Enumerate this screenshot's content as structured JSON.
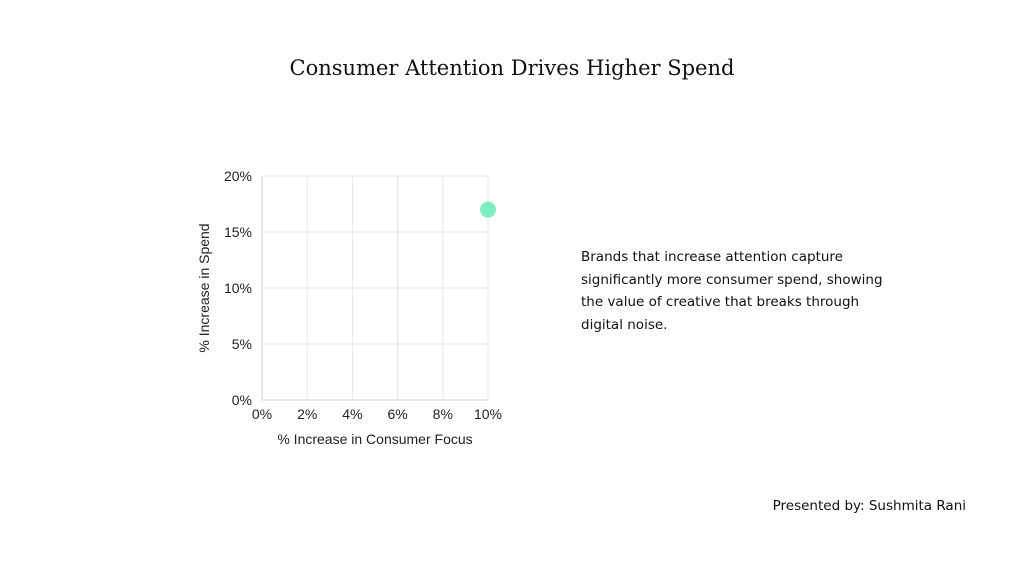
{
  "title": "Consumer Attention Drives Higher Spend",
  "description": "Brands that increase attention capture significantly more consumer spend, showing the value of creative that breaks through digital noise.",
  "presenter": "Presented by: Sushmita Rani",
  "chart_data": {
    "type": "scatter",
    "title": "",
    "xlabel": "% Increase in Consumer Focus",
    "ylabel": "% Increase in Spend",
    "xlim": [
      0,
      10
    ],
    "ylim": [
      0,
      20
    ],
    "x_ticks": [
      "0%",
      "2%",
      "4%",
      "6%",
      "8%",
      "10%"
    ],
    "y_ticks": [
      "0%",
      "5%",
      "10%",
      "15%",
      "20%"
    ],
    "grid": true,
    "points": [
      {
        "x": 10,
        "y": 17
      }
    ],
    "point_color": "#7eecc1",
    "grid_color": "#e6e6e6"
  }
}
